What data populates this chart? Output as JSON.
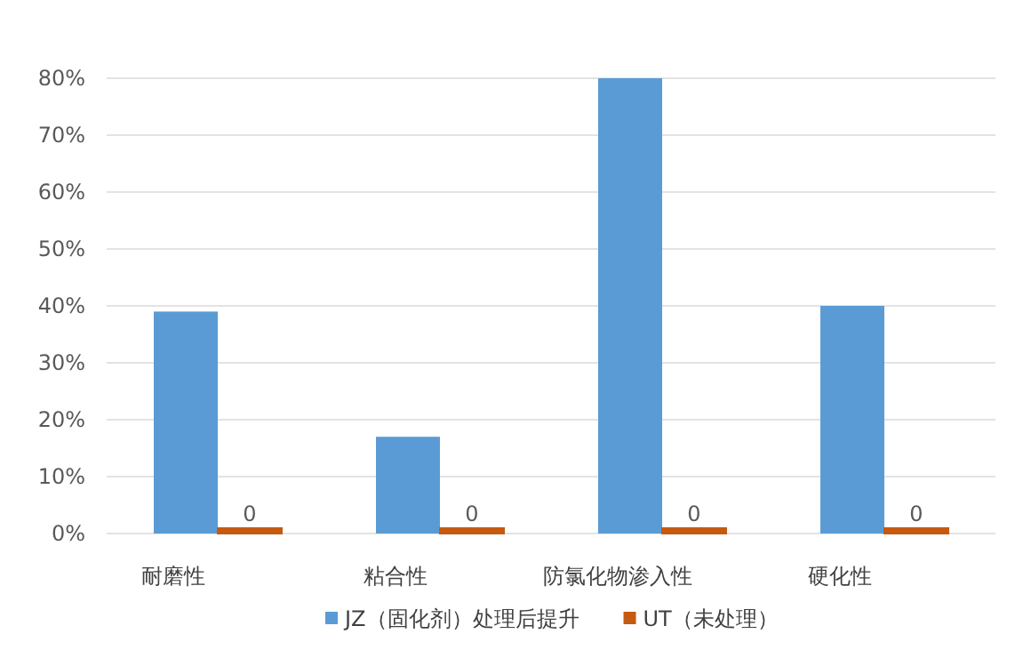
{
  "chart_data": {
    "type": "bar",
    "categories": [
      "耐磨性",
      "粘合性",
      "防氯化物渗入性",
      "硬化性"
    ],
    "series": [
      {
        "name": "JZ（固化剂）处理后提升",
        "color": "#5b9bd5",
        "values": [
          39,
          17,
          80,
          40
        ]
      },
      {
        "name": "UT（未处理）",
        "color": "#c55a11",
        "values": [
          0,
          0,
          0,
          0
        ],
        "value_labels": [
          "0",
          "0",
          "0",
          "0"
        ]
      }
    ],
    "ylim": [
      0,
      80
    ],
    "yticks": [
      {
        "value": 0,
        "label": "0%"
      },
      {
        "value": 10,
        "label": "10%"
      },
      {
        "value": 20,
        "label": "20%"
      },
      {
        "value": 30,
        "label": "30%"
      },
      {
        "value": 40,
        "label": "40%"
      },
      {
        "value": 50,
        "label": "50%"
      },
      {
        "value": 60,
        "label": "60%"
      },
      {
        "value": 70,
        "label": "70%"
      },
      {
        "value": 80,
        "label": "80%"
      }
    ],
    "grid": "y",
    "legend": "bottom"
  }
}
